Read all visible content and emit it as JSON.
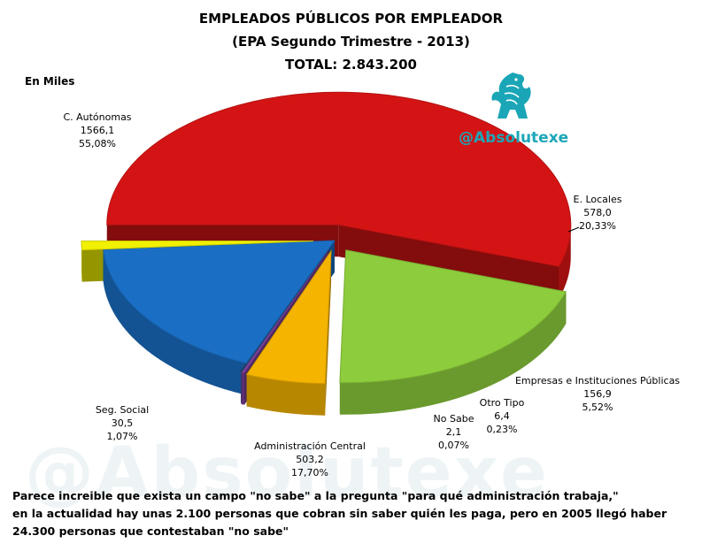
{
  "title": {
    "line1": "EMPLEADOS PÚBLICOS POR EMPLEADOR",
    "line2": "(EPA Segundo Trimestre - 2013)",
    "line3": "TOTAL: 2.843.200"
  },
  "unit": "En Miles",
  "brand": {
    "handle": "@Absolutexe",
    "watermark": "@Absolutexe"
  },
  "note": {
    "line1": "Parece increible que exista un campo \"no sabe\" a la pregunta \"para qué administración trabaja,\"",
    "line2": "en la actualidad hay unas 2.100 personas que cobran sin saber quién les paga, pero en 2005 llegó haber",
    "line3": "24.300 personas que contestaban \"no sabe\""
  },
  "chart_data": {
    "type": "pie",
    "style": "3d exploded",
    "slices": [
      {
        "label": "C. Autónomas",
        "value": "1566,1",
        "percent": "55,08%",
        "color": "#d41414"
      },
      {
        "label": "E. Locales",
        "value": "578,0",
        "percent": "20,33%",
        "color": "#8dcc3c"
      },
      {
        "label": "Empresas e Instituciones Públicas",
        "value": "156,9",
        "percent": "5,52%",
        "color": "#f5b400"
      },
      {
        "label": "Otro Tipo",
        "value": "6,4",
        "percent": "0,23%",
        "color": "#7a3f9a"
      },
      {
        "label": "No Sabe",
        "value": "2,1",
        "percent": "0,07%",
        "color": "#1f4e79"
      },
      {
        "label": "Administración Central",
        "value": "503,2",
        "percent": "17,70%",
        "color": "#1a6fc4"
      },
      {
        "label": "Seg. Social",
        "value": "30,5",
        "percent": "1,07%",
        "color": "#f0f000"
      }
    ]
  }
}
